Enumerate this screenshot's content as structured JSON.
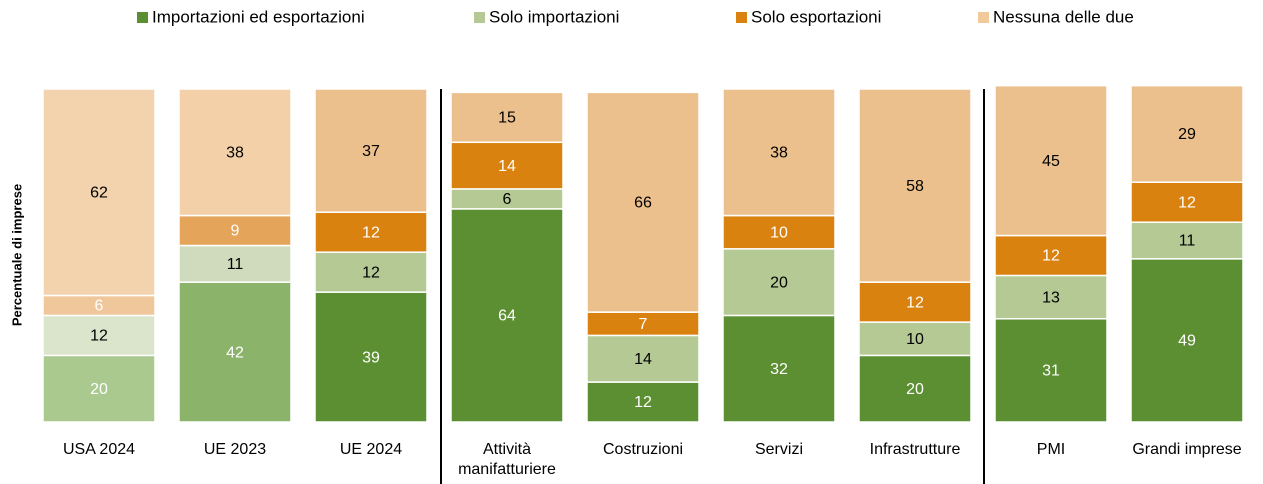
{
  "chart_data": {
    "type": "stacked_bar",
    "y_label": "Percentuale di imprese",
    "categories": [
      "USA 2024",
      "UE 2023",
      "UE 2024",
      "Attività manifatturiere",
      "Costruzioni",
      "Servizi",
      "Infrastrutture",
      "PMI",
      "Grandi imprese"
    ],
    "ylim": [
      0,
      100
    ],
    "series": [
      {
        "name": "Importazioni ed esportazioni",
        "color": "#5b8f32",
        "label_color": "#ffffff",
        "colors": [
          "#a9c98f",
          "#8cb36a",
          "#5b8f32",
          "#5b8f32",
          "#5b8f32",
          "#5b8f32",
          "#5b8f32",
          "#5b8f32",
          "#5b8f32"
        ],
        "values": [
          20,
          42,
          39,
          64,
          12,
          32,
          20,
          31,
          49
        ]
      },
      {
        "name": "Solo importazioni",
        "color": "#b5c995",
        "label_color": "#000000",
        "colors": [
          "#dbe5cc",
          "#cfdbbc",
          "#b5c995",
          "#b5c995",
          "#b5c995",
          "#b5c995",
          "#b5c995",
          "#b5c995",
          "#b5c995"
        ],
        "values": [
          12,
          11,
          12,
          6,
          14,
          20,
          10,
          13,
          11
        ]
      },
      {
        "name": "Solo esportazioni",
        "color": "#d9820f",
        "label_color": "#ffffff",
        "colors": [
          "#f0c79a",
          "#e4a45a",
          "#d9820f",
          "#d9820f",
          "#d9820f",
          "#d9820f",
          "#d9820f",
          "#d9820f",
          "#d9820f"
        ],
        "values": [
          6,
          9,
          12,
          14,
          7,
          10,
          12,
          12,
          12
        ]
      },
      {
        "name": "Nessuna delle due",
        "color": "#f2c99a",
        "label_color": "#000000",
        "colors": [
          "#f3d3ad",
          "#f3d0a8",
          "#ecc08c",
          "#ecc08c",
          "#ecc08c",
          "#ecc08c",
          "#ecc08c",
          "#ecc08c",
          "#ecc08c"
        ],
        "values": [
          62,
          38,
          37,
          15,
          66,
          38,
          58,
          45,
          29
        ]
      }
    ]
  }
}
